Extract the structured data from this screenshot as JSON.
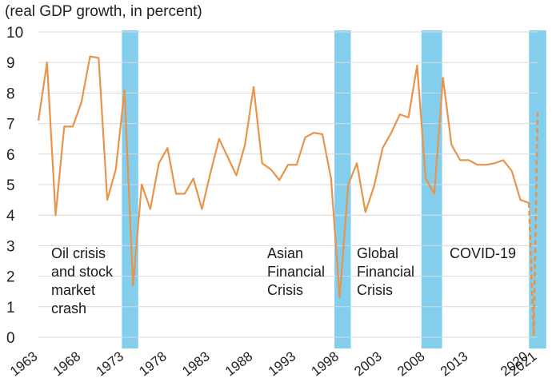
{
  "chart_data": {
    "type": "line",
    "subtitle": "(real GDP growth, in percent)",
    "ylim": [
      0,
      10
    ],
    "yticks": [
      0,
      1,
      2,
      3,
      4,
      5,
      6,
      7,
      8,
      9,
      10
    ],
    "xlim": [
      1963,
      2021
    ],
    "xticks": [
      "1963",
      "1968",
      "1973",
      "1978",
      "1983",
      "1988",
      "1993",
      "1998",
      "2003",
      "2008",
      "2013",
      "2020",
      "2021"
    ],
    "grid": "horizontal",
    "line_color": "#e8944a",
    "band_color": "#6fc6ea",
    "series": [
      {
        "style": "solid",
        "x": [
          1963,
          1964,
          1965,
          1966,
          1967,
          1968,
          1969,
          1970,
          1971,
          1972,
          1973,
          1974,
          1975,
          1976,
          1977,
          1978,
          1979,
          1980,
          1981,
          1982,
          1983,
          1984,
          1985,
          1986,
          1987,
          1988,
          1989,
          1990,
          1991,
          1992,
          1993,
          1994,
          1995,
          1996,
          1997,
          1998,
          1999,
          2000,
          2001,
          2002,
          2003,
          2004,
          2005,
          2006,
          2007,
          2008,
          2009,
          2010,
          2011,
          2012,
          2013,
          2014,
          2015,
          2016,
          2017,
          2018,
          2019,
          2020
        ],
        "values": [
          7.1,
          9.0,
          4.0,
          6.9,
          6.9,
          7.7,
          9.2,
          9.15,
          4.5,
          5.5,
          8.1,
          1.7,
          5.0,
          4.2,
          5.7,
          6.2,
          4.7,
          4.7,
          5.2,
          4.2,
          5.4,
          6.5,
          5.9,
          5.3,
          6.3,
          8.2,
          5.7,
          5.5,
          5.15,
          5.65,
          5.65,
          6.55,
          6.7,
          6.65,
          5.2,
          1.3,
          5.0,
          5.7,
          4.1,
          4.95,
          6.2,
          6.7,
          7.3,
          7.2,
          8.9,
          5.2,
          4.7,
          8.5,
          6.3,
          5.8,
          5.8,
          5.65,
          5.65,
          5.7,
          5.8,
          5.45,
          4.5,
          4.4
        ]
      },
      {
        "style": "dashed",
        "x": [
          2020,
          2020.55,
          2021
        ],
        "values": [
          4.4,
          0.05,
          7.4
        ]
      }
    ],
    "shaded_periods": [
      {
        "from": 1972.7,
        "to": 1974.6
      },
      {
        "from": 1997.4,
        "to": 1999.3
      },
      {
        "from": 2007.5,
        "to": 2009.9
      },
      {
        "from": 2020.0,
        "to": 2022.0
      }
    ],
    "annotations": [
      "Oil crisis\nand stock\nmarket\ncrash",
      "Asian\nFinancial\nCrisis",
      "Global\nFinancial\nCrisis",
      "COVID-19"
    ]
  }
}
